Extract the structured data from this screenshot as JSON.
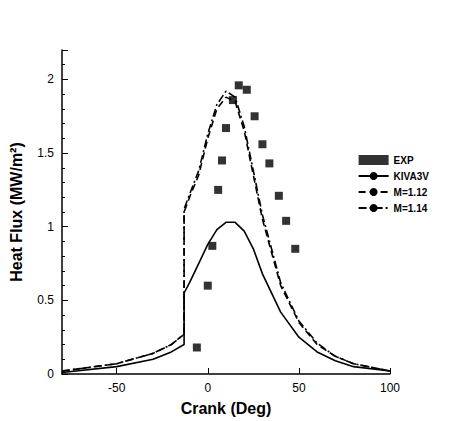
{
  "chart_data": {
    "type": "line",
    "x_label": "Crank (Deg)",
    "y_label": "Heat Flux (MW/m²)",
    "xlim": [
      -80,
      100
    ],
    "xticks": [
      -50,
      0,
      50,
      100
    ],
    "ylim": [
      0,
      2.2
    ],
    "yticks": [
      0,
      0.5,
      1,
      1.5,
      2
    ],
    "grid": false,
    "legend": "right",
    "series": [
      {
        "name": "EXP",
        "type": "scatter",
        "marker": "square",
        "color": "#000000",
        "x": [
          -6,
          0,
          2.5,
          5.7,
          7.8,
          10,
          13.8,
          17,
          21.4,
          25.7,
          30,
          33.8,
          39,
          43,
          48
        ],
        "values": [
          0.18,
          0.6,
          0.87,
          1.25,
          1.45,
          1.67,
          1.86,
          1.96,
          1.93,
          1.75,
          1.56,
          1.43,
          1.21,
          1.04,
          0.85
        ]
      },
      {
        "name": "KIVA3V",
        "type": "line",
        "line_style": "solid",
        "color": "#000000",
        "x": [
          -80,
          -50,
          -30,
          -20,
          -13,
          -13,
          -10,
          -5,
          0,
          5,
          10,
          15,
          20,
          25,
          30,
          40,
          50,
          60,
          70,
          80,
          100
        ],
        "values": [
          0.01,
          0.05,
          0.1,
          0.15,
          0.2,
          0.55,
          0.62,
          0.75,
          0.88,
          0.98,
          1.03,
          1.03,
          0.97,
          0.85,
          0.68,
          0.42,
          0.25,
          0.15,
          0.09,
          0.05,
          0.02
        ]
      },
      {
        "name": "M=1.12",
        "type": "line",
        "line_style": "dashed",
        "color": "#000000",
        "x": [
          -80,
          -50,
          -30,
          -20,
          -13,
          -13,
          -10,
          -5,
          0,
          5,
          10,
          15,
          20,
          25,
          30,
          40,
          50,
          60,
          70,
          80,
          100
        ],
        "values": [
          0.02,
          0.07,
          0.14,
          0.2,
          0.27,
          1.1,
          1.2,
          1.35,
          1.6,
          1.8,
          1.88,
          1.85,
          1.65,
          1.35,
          1.05,
          0.6,
          0.35,
          0.2,
          0.12,
          0.07,
          0.02
        ]
      },
      {
        "name": "M=1.14",
        "type": "line",
        "line_style": "dashdot",
        "color": "#000000",
        "x": [
          -80,
          -50,
          -30,
          -20,
          -13,
          -13,
          -10,
          -5,
          0,
          5,
          10,
          15,
          20,
          25,
          30,
          40,
          50,
          60,
          70,
          80,
          100
        ],
        "values": [
          0.02,
          0.07,
          0.14,
          0.2,
          0.27,
          1.12,
          1.22,
          1.38,
          1.63,
          1.83,
          1.92,
          1.88,
          1.68,
          1.38,
          1.08,
          0.62,
          0.36,
          0.21,
          0.12,
          0.07,
          0.02
        ]
      }
    ]
  }
}
